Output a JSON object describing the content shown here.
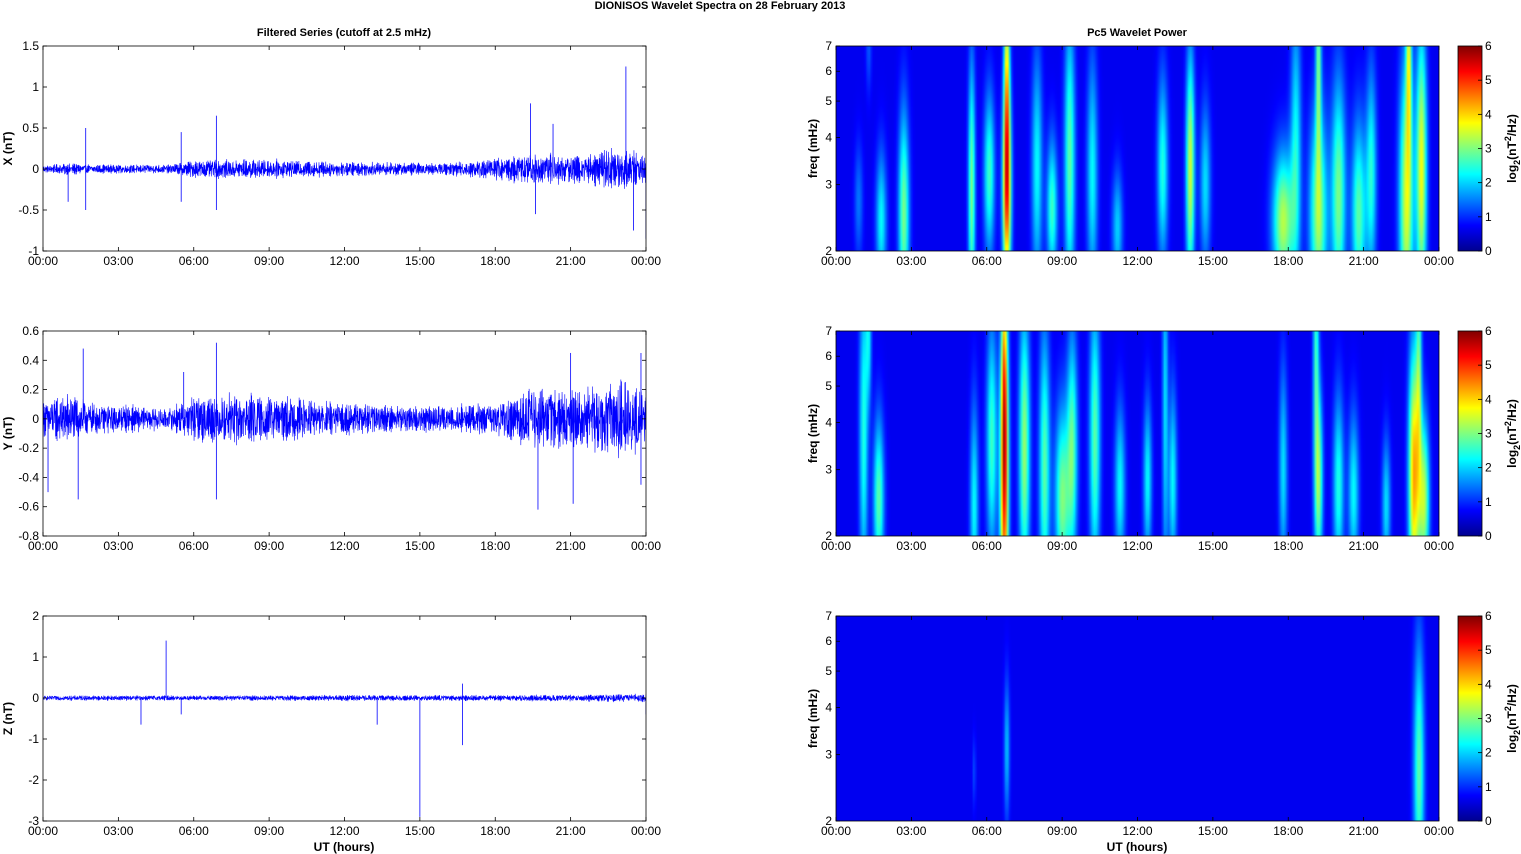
{
  "figure": {
    "title": "DIONISOS Wavelet Spectra on 28 February  2013",
    "left_column_title": "Filtered Series (cutoff at 2.5 mHz)",
    "right_column_title": "Pc5 Wavelet Power",
    "xlabel": "UT (hours)"
  },
  "colorbar": {
    "label_main": "log",
    "label_sub": "2",
    "label_mid": "(nT",
    "label_sup": "2",
    "label_end": "/Hz)",
    "ticks": [
      "0",
      "1",
      "2",
      "3",
      "4",
      "5",
      "6"
    ]
  },
  "chart_data": [
    {
      "type": "line",
      "panel": "X",
      "ylabel": "X (nT)",
      "xlim": [
        0,
        24
      ],
      "ylim": [
        -1,
        1.5
      ],
      "yticks": [
        "-1",
        "-0.5",
        "0",
        "0.5",
        "1",
        "1.5"
      ],
      "xticks": [
        "00:00",
        "03:00",
        "06:00",
        "09:00",
        "12:00",
        "15:00",
        "18:00",
        "21:00",
        "00:00"
      ],
      "color": "#0000ff",
      "noise_envelope": [
        [
          0,
          0.05
        ],
        [
          1,
          0.08
        ],
        [
          2,
          0.06
        ],
        [
          5,
          0.06
        ],
        [
          6,
          0.12
        ],
        [
          8,
          0.14
        ],
        [
          12,
          0.1
        ],
        [
          16,
          0.08
        ],
        [
          18,
          0.15
        ],
        [
          19.5,
          0.22
        ],
        [
          21.5,
          0.2
        ],
        [
          23,
          0.3
        ],
        [
          24,
          0.2
        ]
      ],
      "spikes": [
        [
          1.0,
          -0.4
        ],
        [
          1.7,
          0.5
        ],
        [
          1.7,
          -0.5
        ],
        [
          5.5,
          0.45
        ],
        [
          5.5,
          -0.4
        ],
        [
          6.9,
          0.65
        ],
        [
          6.9,
          -0.5
        ],
        [
          19.4,
          0.8
        ],
        [
          19.6,
          -0.55
        ],
        [
          20.3,
          0.55
        ],
        [
          23.2,
          1.25
        ],
        [
          23.5,
          -0.75
        ],
        [
          24,
          -0.85
        ]
      ]
    },
    {
      "type": "line",
      "panel": "Y",
      "ylabel": "Y (nT)",
      "xlim": [
        0,
        24
      ],
      "ylim": [
        -0.8,
        0.6
      ],
      "yticks": [
        "-0.8",
        "-0.6",
        "-0.4",
        "-0.2",
        "0",
        "0.2",
        "0.4",
        "0.6"
      ],
      "xticks": [
        "00:00",
        "03:00",
        "06:00",
        "09:00",
        "12:00",
        "15:00",
        "18:00",
        "21:00",
        "00:00"
      ],
      "color": "#0000ff",
      "noise_envelope": [
        [
          0,
          0.14
        ],
        [
          1,
          0.2
        ],
        [
          2,
          0.12
        ],
        [
          5,
          0.08
        ],
        [
          6,
          0.18
        ],
        [
          8,
          0.2
        ],
        [
          12,
          0.12
        ],
        [
          16,
          0.1
        ],
        [
          18,
          0.12
        ],
        [
          19.5,
          0.25
        ],
        [
          21,
          0.22
        ],
        [
          23.5,
          0.3
        ],
        [
          24,
          0.2
        ]
      ],
      "spikes": [
        [
          0.2,
          -0.5
        ],
        [
          1.6,
          0.48
        ],
        [
          1.4,
          -0.55
        ],
        [
          5.6,
          0.32
        ],
        [
          6.9,
          0.52
        ],
        [
          6.9,
          -0.55
        ],
        [
          19.7,
          -0.62
        ],
        [
          21,
          0.45
        ],
        [
          21.1,
          -0.58
        ],
        [
          23.8,
          0.45
        ],
        [
          23.8,
          -0.45
        ]
      ]
    },
    {
      "type": "line",
      "panel": "Z",
      "ylabel": "Z (nT)",
      "xlim": [
        0,
        24
      ],
      "ylim": [
        -3,
        2
      ],
      "yticks": [
        "-3",
        "-2",
        "-1",
        "0",
        "1",
        "2"
      ],
      "xticks": [
        "00:00",
        "03:00",
        "06:00",
        "09:00",
        "12:00",
        "15:00",
        "18:00",
        "21:00",
        "00:00"
      ],
      "color": "#0000ff",
      "noise_envelope": [
        [
          0,
          0.07
        ],
        [
          6,
          0.07
        ],
        [
          12,
          0.08
        ],
        [
          18,
          0.08
        ],
        [
          22,
          0.1
        ],
        [
          24,
          0.12
        ]
      ],
      "spikes": [
        [
          3.9,
          -0.65
        ],
        [
          4.9,
          1.4
        ],
        [
          5.5,
          -0.4
        ],
        [
          13.3,
          -0.65
        ],
        [
          15.0,
          -2.9
        ],
        [
          16.7,
          -1.15
        ],
        [
          16.7,
          0.35
        ],
        [
          24,
          -0.4
        ]
      ]
    },
    {
      "type": "heatmap",
      "panel": "X",
      "ylabel": "freq (mHz)",
      "yscale": "log",
      "xlim": [
        0,
        24
      ],
      "ylim": [
        2,
        7
      ],
      "yticks": [
        "2",
        "3",
        "4",
        "5",
        "6",
        "7"
      ],
      "xticks": [
        "00:00",
        "03:00",
        "06:00",
        "09:00",
        "12:00",
        "15:00",
        "18:00",
        "21:00",
        "00:00"
      ],
      "clim": [
        0,
        6
      ],
      "colormap": "jet",
      "blobs": [
        [
          0.9,
          2.7,
          0.9,
          0.12,
          0.25
        ],
        [
          1.3,
          7,
          0.7,
          0.08,
          0.2
        ],
        [
          1.8,
          2.4,
          1.8,
          0.15,
          0.3
        ],
        [
          2.7,
          2.5,
          2.6,
          0.15,
          0.45
        ],
        [
          5.4,
          2.9,
          2.6,
          0.1,
          0.55
        ],
        [
          6.1,
          3.2,
          2.2,
          0.15,
          0.35
        ],
        [
          6.8,
          2.9,
          4.6,
          0.12,
          0.45
        ],
        [
          6.8,
          6.0,
          2.8,
          0.08,
          0.5
        ],
        [
          8,
          3.3,
          1.8,
          0.15,
          0.5
        ],
        [
          8.6,
          2.6,
          2.2,
          0.15,
          0.3
        ],
        [
          9.3,
          3.5,
          2.4,
          0.15,
          0.6
        ],
        [
          10.2,
          3.2,
          1.8,
          0.15,
          0.5
        ],
        [
          11.2,
          2.3,
          1.5,
          0.15,
          0.25
        ],
        [
          13,
          3.3,
          2.0,
          0.15,
          0.4
        ],
        [
          14.1,
          3.3,
          3.2,
          0.12,
          0.5
        ],
        [
          14.7,
          3.0,
          1.6,
          0.15,
          0.35
        ],
        [
          17.8,
          2.4,
          3.0,
          0.3,
          0.3
        ],
        [
          18.3,
          3.8,
          1.8,
          0.15,
          0.6
        ],
        [
          19.2,
          2.5,
          2.8,
          0.25,
          0.45
        ],
        [
          19.2,
          6.8,
          2.4,
          0.08,
          0.5
        ],
        [
          20,
          2.8,
          2.6,
          0.2,
          0.5
        ],
        [
          20.8,
          2.5,
          2.4,
          0.2,
          0.4
        ],
        [
          21.3,
          3.2,
          2.0,
          0.15,
          0.45
        ],
        [
          22.7,
          2.7,
          3.2,
          0.2,
          0.6
        ],
        [
          22.8,
          6.6,
          2.6,
          0.08,
          0.45
        ],
        [
          23.3,
          3.3,
          3.4,
          0.15,
          0.6
        ]
      ]
    },
    {
      "type": "heatmap",
      "panel": "Y",
      "ylabel": "freq (mHz)",
      "yscale": "log",
      "xlim": [
        0,
        24
      ],
      "ylim": [
        2,
        7
      ],
      "yticks": [
        "2",
        "3",
        "4",
        "5",
        "6",
        "7"
      ],
      "xticks": [
        "00:00",
        "03:00",
        "06:00",
        "09:00",
        "12:00",
        "15:00",
        "18:00",
        "21:00",
        "00:00"
      ],
      "clim": [
        0,
        6
      ],
      "colormap": "jet",
      "blobs": [
        [
          1.1,
          3.8,
          2.0,
          0.12,
          0.7
        ],
        [
          1.7,
          2.5,
          2.4,
          0.15,
          0.35
        ],
        [
          1.3,
          6.8,
          1.5,
          0.08,
          0.3
        ],
        [
          5.5,
          2.4,
          1.8,
          0.12,
          0.45
        ],
        [
          6.2,
          3.6,
          2.2,
          0.15,
          0.5
        ],
        [
          6.7,
          2.8,
          4.8,
          0.12,
          0.7
        ],
        [
          6.7,
          5.5,
          2.0,
          0.08,
          0.5
        ],
        [
          7.5,
          3.4,
          2.8,
          0.15,
          0.6
        ],
        [
          8.3,
          3.0,
          2.4,
          0.15,
          0.6
        ],
        [
          9.0,
          2.5,
          2.6,
          0.2,
          0.4
        ],
        [
          9.4,
          3.4,
          2.4,
          0.15,
          0.5
        ],
        [
          10.3,
          3.6,
          2.4,
          0.15,
          0.6
        ],
        [
          11.3,
          2.7,
          1.8,
          0.15,
          0.35
        ],
        [
          12.4,
          2.8,
          1.8,
          0.12,
          0.35
        ],
        [
          13.1,
          4.5,
          1.6,
          0.08,
          0.8
        ],
        [
          13.4,
          2.8,
          1.8,
          0.12,
          0.4
        ],
        [
          17.8,
          3.0,
          1.6,
          0.12,
          0.45
        ],
        [
          19.2,
          2.8,
          2.8,
          0.12,
          0.4
        ],
        [
          19.1,
          6.5,
          2.0,
          0.08,
          0.5
        ],
        [
          20.0,
          2.7,
          2.0,
          0.15,
          0.4
        ],
        [
          20.6,
          2.6,
          1.8,
          0.15,
          0.35
        ],
        [
          21.9,
          2.4,
          1.6,
          0.12,
          0.3
        ],
        [
          23.0,
          2.9,
          4.0,
          0.15,
          0.55
        ],
        [
          23.2,
          5.5,
          2.0,
          0.08,
          0.5
        ],
        [
          23.4,
          2.5,
          3.0,
          0.15,
          0.35
        ]
      ]
    },
    {
      "type": "heatmap",
      "panel": "Z",
      "ylabel": "freq (mHz)",
      "yscale": "log",
      "xlim": [
        0,
        24
      ],
      "ylim": [
        2,
        7
      ],
      "yticks": [
        "2",
        "3",
        "4",
        "5",
        "6",
        "7"
      ],
      "xticks": [
        "00:00",
        "03:00",
        "06:00",
        "09:00",
        "12:00",
        "15:00",
        "18:00",
        "21:00",
        "00:00"
      ],
      "clim": [
        0,
        6
      ],
      "colormap": "jet",
      "blobs": [
        [
          6.8,
          3.1,
          1.4,
          0.08,
          0.3
        ],
        [
          5.5,
          2.7,
          0.6,
          0.05,
          0.15
        ],
        [
          23.2,
          2.7,
          2.4,
          0.15,
          0.55
        ]
      ]
    }
  ]
}
